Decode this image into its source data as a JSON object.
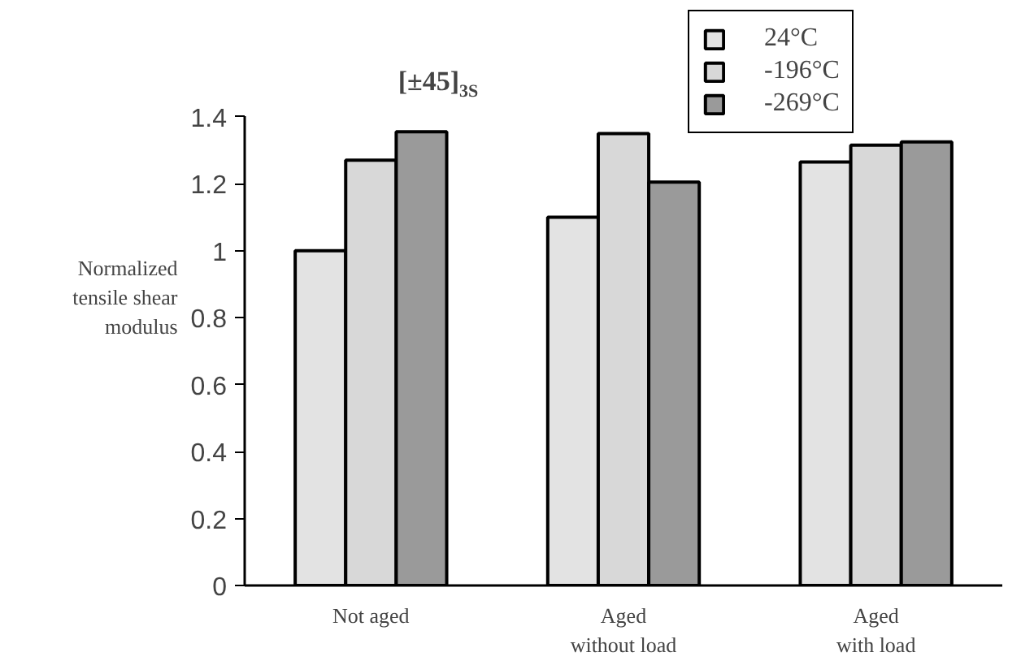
{
  "chart_data": {
    "type": "bar",
    "title": "[±45]$_{3S}$",
    "ylabel": "Normalized\ntensile shear\nmodulus",
    "categories": [
      "Not aged",
      "Aged\nwithout load",
      "Aged\nwith load"
    ],
    "series": [
      {
        "name": "24°C",
        "color": "#e3e3e3",
        "values": [
          1.0,
          1.1,
          1.265
        ]
      },
      {
        "name": "-196°C",
        "color": "#d8d8d8",
        "values": [
          1.27,
          1.35,
          1.315
        ]
      },
      {
        "name": "-269°C",
        "color": "#9a9a9a",
        "values": [
          1.355,
          1.205,
          1.325
        ]
      }
    ],
    "ylim": [
      0,
      1.4
    ],
    "yticks": [
      0,
      0.2,
      0.4,
      0.6,
      0.8,
      1,
      1.2,
      1.4
    ],
    "grid": false,
    "legend": "top right"
  }
}
